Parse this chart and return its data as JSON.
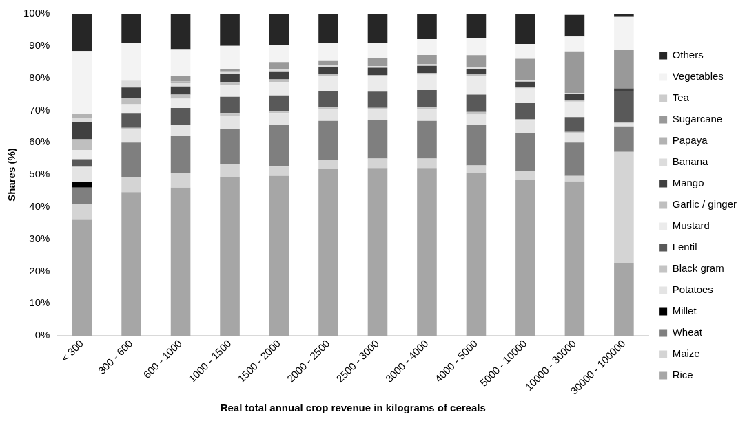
{
  "chart_data": {
    "type": "bar",
    "stacked": true,
    "xlabel": "Real total annual crop revenue in kilograms of cereals",
    "ylabel": "Shares (%)",
    "legend": "right",
    "grid": false,
    "categories": [
      "< 300",
      "300 - 600",
      "600 - 1000",
      "1000 - 1500",
      "1500 - 2000",
      "2000 - 2500",
      "2500 - 3000",
      "3000 - 4000",
      "4000 - 5000",
      "5000 - 10000",
      "10000 - 30000",
      "30000 - 100000"
    ],
    "ylim": [
      0,
      100
    ],
    "yticks": [
      {
        "value": 0,
        "label": "0%"
      },
      {
        "value": 10,
        "label": "10%"
      },
      {
        "value": 20,
        "label": "20%"
      },
      {
        "value": 30,
        "label": "30%"
      },
      {
        "value": 40,
        "label": "40%"
      },
      {
        "value": 50,
        "label": "50%"
      },
      {
        "value": 60,
        "label": "60%"
      },
      {
        "value": 70,
        "label": "70%"
      },
      {
        "value": 80,
        "label": "80%"
      },
      {
        "value": 90,
        "label": "90%"
      },
      {
        "value": 100,
        "label": "100%"
      }
    ],
    "series": [
      {
        "name": "Rice",
        "color": "#a6a6a6",
        "values": [
          36,
          44.6,
          46,
          49.2,
          49.6,
          51.7,
          52.1,
          52.1,
          50.4,
          48.5,
          47.9,
          22.5
        ]
      },
      {
        "name": "Maize",
        "color": "#d4d4d4",
        "values": [
          5,
          4.6,
          4.4,
          4.2,
          2.9,
          2.9,
          2.9,
          2.9,
          2.5,
          2.8,
          1.7,
          34.6
        ]
      },
      {
        "name": "Wheat",
        "color": "#7f7f7f",
        "values": [
          5,
          10.8,
          11.7,
          10.8,
          12.9,
          12.1,
          11.9,
          11.7,
          12.5,
          11.7,
          10.4,
          7.9
        ]
      },
      {
        "name": "Millet",
        "color": "#000000",
        "values": [
          1.7,
          0,
          0,
          0,
          0,
          0,
          0,
          0,
          0,
          0,
          0,
          0
        ]
      },
      {
        "name": "Potatoes",
        "color": "#e4e4e4",
        "values": [
          4.6,
          4.2,
          3.3,
          4.2,
          3.8,
          3.8,
          3.5,
          3.8,
          3.3,
          3.8,
          2.9,
          0.9
        ]
      },
      {
        "name": "Black gram",
        "color": "#c4c4c4",
        "values": [
          0.4,
          0.4,
          null,
          0.8,
          0.4,
          0.4,
          0.4,
          0.4,
          0.8,
          0.4,
          0.4,
          0.5
        ]
      },
      {
        "name": "Lentil",
        "color": "#595959",
        "values": [
          2.1,
          4.6,
          5.3,
          5,
          5,
          5,
          5,
          5.4,
          5.4,
          5,
          4.6,
          9.6
        ]
      },
      {
        "name": "Mustard",
        "color": "#ebebeb",
        "values": [
          2.9,
          2.7,
          2.9,
          3.5,
          4.2,
          4.8,
          4.8,
          4.8,
          5.8,
          4.6,
          4.8,
          0
        ]
      },
      {
        "name": "Garlic / ginger",
        "color": "#bfbfbf",
        "values": [
          3.3,
          1.9,
          1.3,
          1.1,
          0.8,
          0.6,
          0.4,
          0.5,
          0.5,
          0.4,
          0.4,
          0
        ]
      },
      {
        "name": "Mango",
        "color": "#404040",
        "values": [
          5.4,
          3.3,
          2.5,
          2.5,
          2.5,
          2.1,
          2.2,
          2.2,
          1.7,
          1.7,
          1.9,
          0.8
        ]
      },
      {
        "name": "Banana",
        "color": "#dcdcdc",
        "values": [
          1.2,
          2.1,
          1.2,
          0.8,
          0.8,
          0.6,
          0.5,
          0.5,
          0.4,
          0.4,
          0.4,
          0
        ]
      },
      {
        "name": "Papaya",
        "color": "#b3b3b3",
        "values": [
          1.2,
          0,
          0.4,
          0,
          0,
          0,
          0,
          0,
          0,
          0,
          0,
          0
        ]
      },
      {
        "name": "Sugarcane",
        "color": "#999999",
        "values": [
          0,
          0,
          1.7,
          0.8,
          2.1,
          1.5,
          2.5,
          2.9,
          3.8,
          6.7,
          12.9,
          12.1
        ]
      },
      {
        "name": "Tea",
        "color": "#cccccc",
        "values": [
          0,
          null,
          0,
          0,
          0,
          0,
          0,
          0,
          0,
          0,
          0,
          0
        ]
      },
      {
        "name": "Vegetables",
        "color": "#f3f3f3",
        "values": [
          19.6,
          11.6,
          8.3,
          7.1,
          5.4,
          5.4,
          4.6,
          5,
          5.4,
          4.6,
          4.6,
          10.3
        ]
      },
      {
        "name": "Others",
        "color": "#262626",
        "values": [
          11.6,
          9.2,
          11,
          10,
          9.6,
          9.1,
          9.2,
          7.8,
          7.5,
          9.4,
          6.7,
          0.8
        ]
      }
    ]
  }
}
